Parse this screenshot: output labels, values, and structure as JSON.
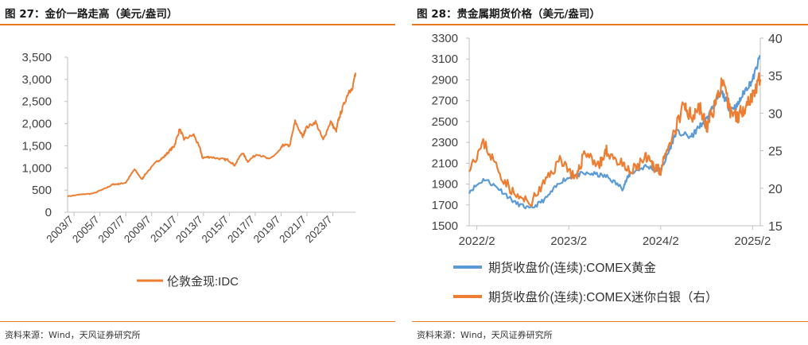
{
  "figures": [
    {
      "title": "图 27：金价一路走高（美元/盎司）",
      "source": "资料来源：Wind，天风证券研究所"
    },
    {
      "title": "图 28：贵金属期货价格（美元/盎司）",
      "source": "资料来源：Wind，天风证券研究所"
    }
  ],
  "chart_data": [
    {
      "type": "line",
      "title": "",
      "xlabel": "",
      "ylabel": "",
      "x_ticks": [
        "2003/7",
        "2005/7",
        "2007/7",
        "2009/7",
        "2011/7",
        "2013/7",
        "2015/7",
        "2017/7",
        "2019/7",
        "2021/7",
        "2023/7"
      ],
      "y_ticks": [
        "0",
        "500",
        "1,000",
        "1,500",
        "2,000",
        "2,500",
        "3,000",
        "3,500"
      ],
      "ylim": [
        0,
        3500
      ],
      "xlim": [
        "2003-01",
        "2025-04"
      ],
      "grid": false,
      "legend_position": "bottom",
      "series": [
        {
          "name": "伦敦金现:IDC",
          "color": "#ed7d31",
          "points": [
            [
              "2003-01",
              360
            ],
            [
              "2004-01",
              400
            ],
            [
              "2005-01",
              425
            ],
            [
              "2006-01",
              550
            ],
            [
              "2006-07",
              630
            ],
            [
              "2007-01",
              640
            ],
            [
              "2007-07",
              670
            ],
            [
              "2008-03",
              970
            ],
            [
              "2008-10",
              740
            ],
            [
              "2009-01",
              860
            ],
            [
              "2009-12",
              1150
            ],
            [
              "2010-06",
              1240
            ],
            [
              "2010-12",
              1400
            ],
            [
              "2011-04",
              1500
            ],
            [
              "2011-09",
              1880
            ],
            [
              "2012-01",
              1650
            ],
            [
              "2012-10",
              1750
            ],
            [
              "2013-04",
              1420
            ],
            [
              "2013-06",
              1230
            ],
            [
              "2014-01",
              1250
            ],
            [
              "2014-12",
              1200
            ],
            [
              "2015-06",
              1180
            ],
            [
              "2015-12",
              1060
            ],
            [
              "2016-07",
              1350
            ],
            [
              "2016-12",
              1150
            ],
            [
              "2017-09",
              1320
            ],
            [
              "2018-08",
              1190
            ],
            [
              "2019-06",
              1400
            ],
            [
              "2019-09",
              1520
            ],
            [
              "2020-03",
              1500
            ],
            [
              "2020-08",
              2050
            ],
            [
              "2021-03",
              1700
            ],
            [
              "2021-06",
              1900
            ],
            [
              "2022-03",
              2040
            ],
            [
              "2022-10",
              1630
            ],
            [
              "2023-05",
              2050
            ],
            [
              "2023-10",
              1820
            ],
            [
              "2023-12",
              2070
            ],
            [
              "2024-04",
              2350
            ],
            [
              "2024-10",
              2750
            ],
            [
              "2025-01",
              2750
            ],
            [
              "2025-04",
              3150
            ]
          ]
        }
      ]
    },
    {
      "type": "line",
      "title": "",
      "xlabel": "",
      "ylabel": "",
      "x_ticks": [
        "2022/2",
        "2023/2",
        "2024/2",
        "2025/2"
      ],
      "y_left_ticks": [
        "1500",
        "1700",
        "1900",
        "2100",
        "2300",
        "2500",
        "2700",
        "2900",
        "3100",
        "3300"
      ],
      "y_right_ticks": [
        "15",
        "20",
        "25",
        "30",
        "35",
        "40"
      ],
      "ylim_left": [
        1500,
        3300
      ],
      "ylim_right": [
        15,
        40
      ],
      "xlim": [
        "2022-02",
        "2025-02"
      ],
      "grid": false,
      "legend_position": "bottom",
      "series": [
        {
          "name": "期货收盘价(连续):COMEX黄金",
          "color": "#5b9bd5",
          "axis": "left",
          "points": [
            [
              "2022-01",
              1830
            ],
            [
              "2022-03",
              1950
            ],
            [
              "2022-05",
              1850
            ],
            [
              "2022-07",
              1720
            ],
            [
              "2022-09",
              1660
            ],
            [
              "2022-11",
              1760
            ],
            [
              "2023-01",
              1930
            ],
            [
              "2023-03",
              1990
            ],
            [
              "2023-05",
              2000
            ],
            [
              "2023-07",
              1970
            ],
            [
              "2023-09",
              1860
            ],
            [
              "2023-10",
              2000
            ],
            [
              "2023-12",
              2070
            ],
            [
              "2024-02",
              2030
            ],
            [
              "2024-03",
              2200
            ],
            [
              "2024-04",
              2400
            ],
            [
              "2024-06",
              2350
            ],
            [
              "2024-07",
              2450
            ],
            [
              "2024-08",
              2520
            ],
            [
              "2024-09",
              2670
            ],
            [
              "2024-10",
              2780
            ],
            [
              "2024-11",
              2620
            ],
            [
              "2024-12",
              2650
            ],
            [
              "2025-01",
              2800
            ],
            [
              "2025-02",
              2900
            ],
            [
              "2025-03",
              3130
            ]
          ]
        },
        {
          "name": "期货收盘价(连续):COMEX迷你白银（右）",
          "color": "#ed7d31",
          "axis": "right",
          "points": [
            [
              "2022-01",
              23.0
            ],
            [
              "2022-03",
              26.0
            ],
            [
              "2022-05",
              22.0
            ],
            [
              "2022-07",
              19.0
            ],
            [
              "2022-09",
              18.0
            ],
            [
              "2022-11",
              21.0
            ],
            [
              "2023-01",
              24.0
            ],
            [
              "2023-03",
              21.0
            ],
            [
              "2023-04",
              25.0
            ],
            [
              "2023-06",
              23.0
            ],
            [
              "2023-07",
              25.0
            ],
            [
              "2023-09",
              23.0
            ],
            [
              "2023-10",
              22.0
            ],
            [
              "2023-12",
              24.0
            ],
            [
              "2024-01",
              23.0
            ],
            [
              "2024-02",
              22.5
            ],
            [
              "2024-03",
              25.0
            ],
            [
              "2024-05",
              31.0
            ],
            [
              "2024-06",
              29.5
            ],
            [
              "2024-07",
              31.0
            ],
            [
              "2024-08",
              28.0
            ],
            [
              "2024-09",
              31.0
            ],
            [
              "2024-10",
              34.0
            ],
            [
              "2024-11",
              30.5
            ],
            [
              "2024-12",
              29.5
            ],
            [
              "2025-01",
              31.0
            ],
            [
              "2025-02",
              32.5
            ],
            [
              "2025-03",
              34.5
            ]
          ]
        }
      ]
    }
  ]
}
